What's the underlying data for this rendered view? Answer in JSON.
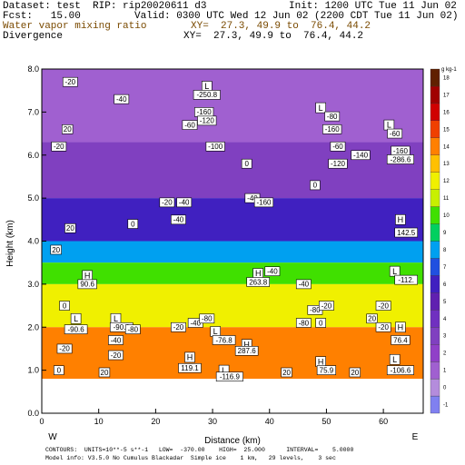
{
  "header": {
    "dataset": "Dataset: test  RIP: rip20020611 d3",
    "init": "Init: 1200 UTC Tue 11 Jun 02",
    "fcst": "Fcst:   15.00",
    "valid": "Valid: 0300 UTC Wed 12 Jun 02 (2200 CDT Tue 11 Jun 02)",
    "var1": "Water vapor mixing ratio",
    "xy1": "XY=  27.3, 49.9 to  76.4, 44.2",
    "var2": "Divergence",
    "xy2": "XY=  27.3, 49.9 to  76.4, 44.2"
  },
  "chart_data": {
    "type": "heatmap",
    "xlabel": "Distance (km)",
    "ylabel": "Height (km)",
    "xlim": [
      0,
      67
    ],
    "ylim": [
      0.0,
      8.0
    ],
    "x_ticks": [
      "0",
      "10",
      "20",
      "30",
      "40",
      "50",
      "60"
    ],
    "y_ticks": [
      "0.0",
      "1.0",
      "2.0",
      "3.0",
      "4.0",
      "5.0",
      "6.0",
      "7.0",
      "8.0"
    ],
    "end_labels": {
      "left": "W",
      "right": "E"
    },
    "colorbar": {
      "unit": "g kg-1",
      "levels": [
        "-1",
        "0",
        "1",
        "2",
        "3",
        "4",
        "5",
        "6",
        "7",
        "8",
        "9",
        "10",
        "11",
        "12",
        "13",
        "14",
        "15",
        "16",
        "17",
        "18"
      ],
      "colors": [
        "#8080f0",
        "#b48cdc",
        "#a060d0",
        "#9040c8",
        "#8040c0",
        "#7030c0",
        "#6020b0",
        "#4020c0",
        "#2050e0",
        "#00a0f0",
        "#00d060",
        "#40e000",
        "#c8f000",
        "#f0f000",
        "#ffc000",
        "#ff8000",
        "#f04000",
        "#d00000",
        "#a00000",
        "#602000"
      ]
    },
    "fill_bands": [
      {
        "top": 8.0,
        "bottom": 6.3,
        "level": "1"
      },
      {
        "top": 6.3,
        "bottom": 5.0,
        "level": "3"
      },
      {
        "top": 5.0,
        "bottom": 4.0,
        "level": "6"
      },
      {
        "top": 4.0,
        "bottom": 3.5,
        "level": "8"
      },
      {
        "top": 3.5,
        "bottom": 3.0,
        "level": "10"
      },
      {
        "top": 3.0,
        "bottom": 2.0,
        "level": "12"
      },
      {
        "top": 2.0,
        "bottom": 0.8,
        "level": "14"
      }
    ],
    "annotations": [
      {
        "x": 5,
        "y": 7.7,
        "text": "-20"
      },
      {
        "x": 14,
        "y": 7.3,
        "text": "-40"
      },
      {
        "x": 26,
        "y": 6.7,
        "text": "-60"
      },
      {
        "x": 3,
        "y": 6.2,
        "text": "-20"
      },
      {
        "x": 4.5,
        "y": 6.6,
        "text": "20"
      },
      {
        "x": 29,
        "y": 7.6,
        "text": "L"
      },
      {
        "x": 29,
        "y": 7.4,
        "text": "-250.8"
      },
      {
        "x": 28.5,
        "y": 7.0,
        "text": "-160"
      },
      {
        "x": 29,
        "y": 6.8,
        "text": "-120"
      },
      {
        "x": 30.5,
        "y": 6.2,
        "text": "-100"
      },
      {
        "x": 36,
        "y": 5.8,
        "text": "0"
      },
      {
        "x": 37,
        "y": 5.0,
        "text": "-40"
      },
      {
        "x": 39,
        "y": 4.9,
        "text": "-160"
      },
      {
        "x": 22,
        "y": 4.9,
        "text": "-20"
      },
      {
        "x": 25,
        "y": 4.9,
        "text": "-40"
      },
      {
        "x": 24,
        "y": 4.5,
        "text": "-40"
      },
      {
        "x": 16,
        "y": 4.4,
        "text": "0"
      },
      {
        "x": 49,
        "y": 7.1,
        "text": "L"
      },
      {
        "x": 51,
        "y": 6.9,
        "text": "-80"
      },
      {
        "x": 51,
        "y": 6.6,
        "text": "-160"
      },
      {
        "x": 52,
        "y": 6.2,
        "text": "-60"
      },
      {
        "x": 56,
        "y": 6.0,
        "text": "-140"
      },
      {
        "x": 52,
        "y": 5.8,
        "text": "-120"
      },
      {
        "x": 61,
        "y": 6.7,
        "text": "L"
      },
      {
        "x": 62,
        "y": 6.5,
        "text": "-60"
      },
      {
        "x": 63,
        "y": 6.1,
        "text": "-160"
      },
      {
        "x": 63,
        "y": 5.9,
        "text": "-286.6"
      },
      {
        "x": 48,
        "y": 5.3,
        "text": "0"
      },
      {
        "x": 63,
        "y": 4.5,
        "text": "H"
      },
      {
        "x": 64,
        "y": 4.2,
        "text": "142.5"
      },
      {
        "x": 5,
        "y": 4.3,
        "text": "20"
      },
      {
        "x": 2.5,
        "y": 3.8,
        "text": "20"
      },
      {
        "x": 8,
        "y": 3.2,
        "text": "H"
      },
      {
        "x": 8,
        "y": 3.0,
        "text": "90.6"
      },
      {
        "x": 4,
        "y": 2.5,
        "text": "0"
      },
      {
        "x": 6,
        "y": 2.2,
        "text": "L"
      },
      {
        "x": 6,
        "y": 1.95,
        "text": "-90.6"
      },
      {
        "x": 13,
        "y": 2.2,
        "text": "L"
      },
      {
        "x": 14,
        "y": 2.0,
        "text": "-90.0"
      },
      {
        "x": 16,
        "y": 1.95,
        "text": "-80"
      },
      {
        "x": 13,
        "y": 1.7,
        "text": "-40"
      },
      {
        "x": 4,
        "y": 1.5,
        "text": "-20"
      },
      {
        "x": 13,
        "y": 1.35,
        "text": "-20"
      },
      {
        "x": 24,
        "y": 2.0,
        "text": "-20"
      },
      {
        "x": 27,
        "y": 2.1,
        "text": "-40"
      },
      {
        "x": 29,
        "y": 2.2,
        "text": "-80"
      },
      {
        "x": 30.5,
        "y": 1.9,
        "text": "L"
      },
      {
        "x": 32,
        "y": 1.7,
        "text": "-76.8"
      },
      {
        "x": 26,
        "y": 1.3,
        "text": "H"
      },
      {
        "x": 26,
        "y": 1.05,
        "text": "119.1"
      },
      {
        "x": 36,
        "y": 1.6,
        "text": "H"
      },
      {
        "x": 36,
        "y": 1.45,
        "text": "287.6"
      },
      {
        "x": 38,
        "y": 3.25,
        "text": "H"
      },
      {
        "x": 38,
        "y": 3.05,
        "text": "263.8"
      },
      {
        "x": 40.5,
        "y": 3.3,
        "text": "-40"
      },
      {
        "x": 46,
        "y": 3.0,
        "text": "-40"
      },
      {
        "x": 48,
        "y": 2.4,
        "text": "-80"
      },
      {
        "x": 50,
        "y": 2.5,
        "text": "-20"
      },
      {
        "x": 46,
        "y": 2.1,
        "text": "-80"
      },
      {
        "x": 49,
        "y": 2.1,
        "text": "0"
      },
      {
        "x": 58,
        "y": 2.2,
        "text": "20"
      },
      {
        "x": 60,
        "y": 2.5,
        "text": "-20"
      },
      {
        "x": 60,
        "y": 2.0,
        "text": "-20"
      },
      {
        "x": 62,
        "y": 3.3,
        "text": "L"
      },
      {
        "x": 64,
        "y": 3.1,
        "text": "-112."
      },
      {
        "x": 63,
        "y": 2.0,
        "text": "H"
      },
      {
        "x": 63,
        "y": 1.7,
        "text": "76.4"
      },
      {
        "x": 3,
        "y": 1.0,
        "text": "0"
      },
      {
        "x": 11,
        "y": 0.95,
        "text": "20"
      },
      {
        "x": 32,
        "y": 1.0,
        "text": "L"
      },
      {
        "x": 33,
        "y": 0.85,
        "text": "-116.9"
      },
      {
        "x": 49,
        "y": 1.2,
        "text": "H"
      },
      {
        "x": 50,
        "y": 1.0,
        "text": "75.9"
      },
      {
        "x": 43,
        "y": 0.95,
        "text": "20"
      },
      {
        "x": 55,
        "y": 0.95,
        "text": "20"
      },
      {
        "x": 62,
        "y": 1.25,
        "text": "L"
      },
      {
        "x": 63,
        "y": 1.0,
        "text": "-106.6"
      }
    ]
  },
  "footer": {
    "line1": "CONTOURS:  UNITS=10**-5 s**-1   LOW=  -370.00    HIGH=  25.000      INTERVAL=    5.0000",
    "line2": "Model info: V3.5.0 No Cumulus Blackadar  Simple ice    1 km,   29 levels,    3 sec"
  }
}
